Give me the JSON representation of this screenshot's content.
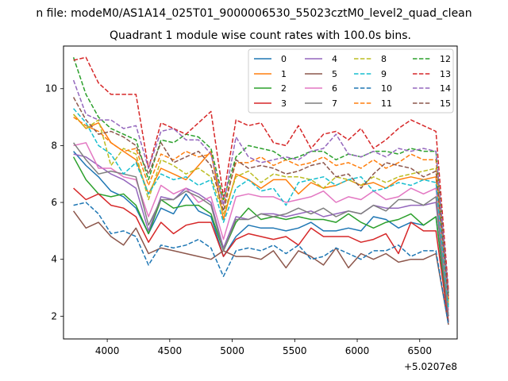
{
  "chart_data": {
    "type": "line",
    "suptitle": "n file: modeM0/AS1A14_025T01_9000006530_55023cztM0_level2_quad_clean",
    "title": "Quadrant 1 module wise count rates with 100.0s bins.",
    "xlabel": "",
    "ylabel": "",
    "x_offset_label": "+5.0207e8",
    "xlim": [
      3650,
      6800
    ],
    "ylim": [
      1.2,
      11.5
    ],
    "xticks": [
      4000,
      4500,
      5000,
      5500,
      6000,
      6500
    ],
    "yticks": [
      2,
      4,
      6,
      8,
      10
    ],
    "grid": false,
    "legend_position": "top-right",
    "x": [
      3730,
      3830,
      3930,
      4030,
      4130,
      4230,
      4330,
      4430,
      4530,
      4630,
      4730,
      4830,
      4930,
      5030,
      5130,
      5230,
      5330,
      5430,
      5530,
      5630,
      5730,
      5830,
      5930,
      6030,
      6130,
      6230,
      6330,
      6430,
      6530,
      6630,
      6730
    ],
    "series": [
      {
        "name": "0",
        "color": "#1f77b4",
        "dash": "solid",
        "values": [
          7.8,
          7.3,
          6.9,
          6.4,
          6.2,
          5.8,
          4.9,
          5.8,
          5.6,
          6.3,
          5.7,
          5.5,
          4.1,
          4.8,
          5.2,
          5.1,
          5.1,
          5.0,
          5.1,
          5.3,
          5.0,
          5.0,
          5.1,
          5.0,
          5.5,
          5.4,
          5.1,
          5.3,
          5.2,
          5.5,
          1.8
        ]
      },
      {
        "name": "1",
        "color": "#ff7f0e",
        "dash": "solid",
        "values": [
          9.1,
          8.6,
          8.8,
          8.1,
          7.8,
          7.5,
          6.3,
          7.2,
          7.0,
          6.8,
          7.3,
          7.8,
          5.4,
          7.0,
          6.8,
          6.5,
          6.8,
          6.8,
          6.3,
          6.7,
          6.5,
          6.6,
          6.8,
          6.6,
          6.7,
          6.5,
          6.8,
          6.9,
          6.8,
          6.9,
          2.4
        ]
      },
      {
        "name": "2",
        "color": "#2ca02c",
        "dash": "solid",
        "values": [
          7.6,
          6.8,
          6.3,
          6.2,
          6.3,
          5.9,
          4.9,
          6.1,
          5.8,
          5.9,
          5.9,
          5.6,
          4.3,
          5.3,
          5.8,
          5.4,
          5.5,
          5.4,
          5.5,
          5.4,
          5.4,
          5.3,
          5.6,
          5.3,
          5.1,
          5.3,
          5.4,
          5.6,
          5.2,
          5.5,
          2.0
        ]
      },
      {
        "name": "3",
        "color": "#d62728",
        "dash": "solid",
        "values": [
          6.5,
          6.1,
          6.3,
          5.9,
          5.8,
          5.5,
          4.6,
          5.3,
          4.9,
          5.2,
          5.3,
          5.3,
          4.1,
          4.7,
          4.9,
          4.8,
          4.7,
          4.8,
          4.5,
          5.1,
          4.8,
          4.8,
          4.8,
          4.6,
          4.7,
          4.9,
          4.2,
          5.3,
          5.0,
          5.0,
          1.8
        ]
      },
      {
        "name": "4",
        "color": "#9467bd",
        "dash": "solid",
        "values": [
          7.7,
          7.6,
          7.3,
          7.0,
          6.8,
          6.5,
          5.0,
          6.2,
          6.1,
          6.5,
          6.3,
          6.0,
          4.4,
          5.5,
          5.4,
          5.6,
          5.6,
          5.5,
          5.6,
          5.7,
          5.5,
          5.6,
          5.7,
          5.6,
          5.9,
          5.8,
          5.8,
          5.9,
          5.9,
          6.0,
          2.0
        ]
      },
      {
        "name": "5",
        "color": "#8c564b",
        "dash": "solid",
        "values": [
          5.7,
          5.1,
          5.3,
          4.8,
          4.5,
          5.1,
          4.2,
          4.4,
          4.3,
          4.2,
          4.1,
          4.0,
          4.3,
          4.1,
          4.1,
          4.0,
          4.3,
          3.7,
          4.3,
          4.1,
          3.8,
          4.4,
          3.7,
          4.2,
          4.0,
          4.2,
          3.9,
          4.0,
          4.0,
          4.2,
          1.7
        ]
      },
      {
        "name": "6",
        "color": "#e377c2",
        "dash": "solid",
        "values": [
          8.0,
          8.1,
          7.2,
          7.2,
          6.9,
          6.8,
          5.5,
          6.6,
          6.3,
          6.5,
          6.0,
          6.2,
          4.7,
          6.2,
          6.3,
          6.2,
          6.2,
          6.0,
          6.1,
          6.2,
          6.4,
          6.0,
          6.2,
          6.1,
          6.4,
          6.1,
          6.2,
          6.5,
          6.3,
          6.5,
          2.2
        ]
      },
      {
        "name": "7",
        "color": "#7f7f7f",
        "dash": "solid",
        "values": [
          8.1,
          7.5,
          7.0,
          7.1,
          7.0,
          6.9,
          5.2,
          6.1,
          6.1,
          6.4,
          6.2,
          5.9,
          4.3,
          5.4,
          5.4,
          5.6,
          5.5,
          5.6,
          5.8,
          5.6,
          5.8,
          5.5,
          5.7,
          5.6,
          5.9,
          5.7,
          6.1,
          6.1,
          5.9,
          6.2,
          2.0
        ]
      },
      {
        "name": "8",
        "color": "#bcbd22",
        "dash": "dashed",
        "values": [
          9.1,
          8.6,
          8.9,
          7.3,
          7.9,
          7.7,
          6.1,
          7.5,
          7.3,
          7.0,
          7.2,
          6.9,
          5.6,
          6.9,
          7.1,
          6.7,
          7.0,
          6.9,
          6.9,
          6.8,
          6.5,
          6.9,
          6.8,
          6.6,
          6.9,
          6.7,
          6.9,
          7.0,
          7.1,
          7.2,
          2.5
        ]
      },
      {
        "name": "9",
        "color": "#17becf",
        "dash": "dashed",
        "values": [
          9.3,
          8.8,
          8.0,
          7.7,
          7.0,
          7.4,
          6.3,
          7.0,
          6.8,
          6.9,
          6.6,
          6.8,
          5.3,
          6.5,
          6.8,
          6.4,
          6.5,
          5.9,
          6.7,
          6.8,
          6.9,
          6.6,
          6.8,
          6.9,
          6.4,
          6.5,
          6.7,
          6.6,
          6.8,
          6.7,
          2.3
        ]
      },
      {
        "name": "10",
        "color": "#1f77b4",
        "dash": "dashed",
        "values": [
          5.9,
          6.0,
          5.6,
          4.9,
          5.0,
          4.8,
          3.8,
          4.5,
          4.4,
          4.5,
          4.7,
          4.4,
          3.4,
          4.3,
          4.4,
          4.3,
          4.5,
          4.2,
          4.5,
          4.0,
          4.1,
          4.4,
          4.2,
          4.0,
          4.3,
          4.3,
          4.5,
          4.1,
          4.3,
          4.3,
          1.7
        ]
      },
      {
        "name": "11",
        "color": "#ff7f0e",
        "dash": "dashed",
        "values": [
          9.0,
          8.7,
          8.5,
          8.1,
          7.8,
          7.9,
          6.6,
          7.7,
          7.5,
          7.8,
          7.6,
          7.7,
          5.9,
          7.4,
          7.4,
          7.6,
          7.3,
          7.5,
          7.3,
          7.4,
          7.6,
          7.3,
          7.4,
          7.2,
          7.5,
          7.2,
          7.4,
          7.7,
          7.5,
          7.5,
          2.6
        ]
      },
      {
        "name": "12",
        "color": "#2ca02c",
        "dash": "dashed",
        "values": [
          11.1,
          9.8,
          9.0,
          8.6,
          8.4,
          8.2,
          6.8,
          8.2,
          8.1,
          8.4,
          8.3,
          7.9,
          6.1,
          7.6,
          8.0,
          7.9,
          7.8,
          7.5,
          7.6,
          7.8,
          7.8,
          7.5,
          7.7,
          7.6,
          7.8,
          7.8,
          7.7,
          7.9,
          7.8,
          7.8,
          2.8
        ]
      },
      {
        "name": "13",
        "color": "#d62728",
        "dash": "dashed",
        "values": [
          11.0,
          11.1,
          10.2,
          9.8,
          9.8,
          9.8,
          7.2,
          8.8,
          8.6,
          8.4,
          8.8,
          9.2,
          6.2,
          8.9,
          8.7,
          8.8,
          8.1,
          8.0,
          8.7,
          7.9,
          8.4,
          8.5,
          8.2,
          8.6,
          7.9,
          8.2,
          8.6,
          8.9,
          8.7,
          8.5,
          2.9
        ]
      },
      {
        "name": "14",
        "color": "#9467bd",
        "dash": "dashed",
        "values": [
          10.3,
          9.1,
          8.9,
          8.9,
          8.6,
          8.7,
          7.2,
          8.5,
          8.6,
          8.2,
          8.2,
          7.7,
          5.9,
          8.3,
          7.6,
          7.4,
          7.5,
          7.6,
          7.5,
          7.8,
          7.9,
          8.4,
          7.7,
          7.6,
          7.8,
          7.6,
          7.9,
          7.8,
          7.9,
          7.8,
          2.7
        ]
      },
      {
        "name": "15",
        "color": "#8c564b",
        "dash": "dashed",
        "values": [
          9.7,
          8.9,
          8.4,
          8.5,
          8.3,
          8.0,
          7.0,
          8.1,
          7.4,
          7.6,
          7.8,
          7.3,
          5.7,
          7.5,
          7.2,
          7.3,
          7.2,
          7.0,
          7.1,
          7.3,
          7.4,
          6.9,
          7.0,
          6.5,
          7.0,
          7.4,
          7.3,
          7.2,
          6.9,
          7.1,
          2.6
        ]
      }
    ]
  }
}
